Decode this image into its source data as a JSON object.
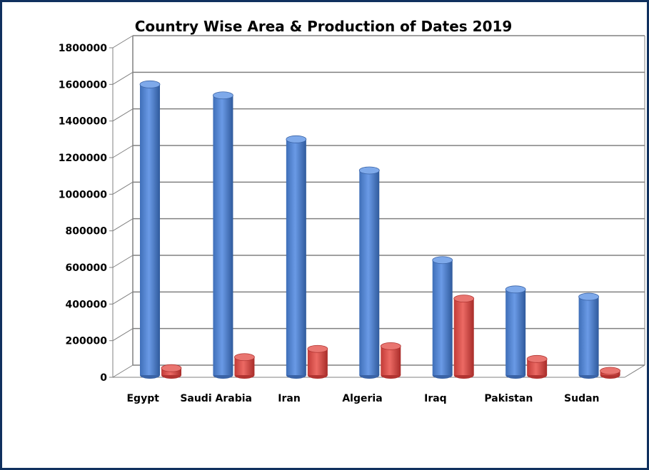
{
  "chart_data": {
    "type": "bar",
    "title": "Country Wise Area & Production of Dates 2019",
    "xlabel": "",
    "ylabel": "",
    "ylim": [
      0,
      1800000
    ],
    "y_ticks": [
      0,
      200000,
      400000,
      600000,
      800000,
      1000000,
      1200000,
      1400000,
      1600000,
      1800000
    ],
    "grid": true,
    "legend": "none",
    "categories": [
      "Egypt",
      "Saudi Arabia",
      "Iran",
      "Algeria",
      "Iraq",
      "Pakistan",
      "Sudan"
    ],
    "series": [
      {
        "values": [
          1600000,
          1540000,
          1300000,
          1130000,
          640000,
          480000,
          440000
        ],
        "color": "#4a7fd1"
      },
      {
        "values": [
          50000,
          110000,
          155000,
          170000,
          430000,
          100000,
          35000
        ],
        "color": "#d64541"
      }
    ]
  }
}
